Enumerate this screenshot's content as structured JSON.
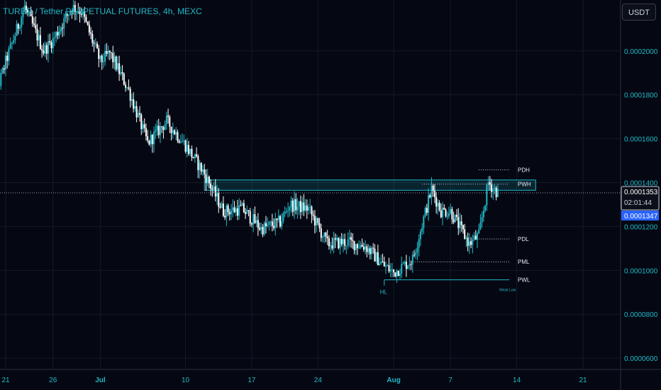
{
  "header": {
    "title": "TURBO / Tether PERPETUAL FUTURES, 4h, MEXC",
    "currency_button": "USDT"
  },
  "chart_data": {
    "type": "candlestick",
    "title": "TURBO / Tether PERPETUAL FUTURES, 4h, MEXC",
    "ylim": [
      4.55e-05,
      0.0002232
    ],
    "y_ticks": [
      "0.0002000",
      "0.0001800",
      "0.0001600",
      "0.0001400",
      "0.0001200",
      "0.0001000",
      "0.0000800",
      "0.0000600"
    ],
    "x_ticks": [
      "21",
      "26",
      "Jul",
      "10",
      "17",
      "24",
      "Aug",
      "7",
      "14",
      "21"
    ],
    "price_labels": {
      "last_price": "0.0001353",
      "countdown": "02:01:44",
      "mark_price": "0.0001347"
    },
    "price_path": [
      {
        "date": "2023-06-19",
        "price": 0.000166
      },
      {
        "date": "2023-06-21",
        "price": 0.000195
      },
      {
        "date": "2023-06-23",
        "price": 0.00022
      },
      {
        "date": "2023-06-25",
        "price": 0.0002
      },
      {
        "date": "2023-06-26",
        "price": 0.000205
      },
      {
        "date": "2023-06-28",
        "price": 0.00022
      },
      {
        "date": "2023-06-29",
        "price": 0.000218
      },
      {
        "date": "2023-07-01",
        "price": 0.000195
      },
      {
        "date": "2023-07-02",
        "price": 0.000199
      },
      {
        "date": "2023-07-04",
        "price": 0.000182
      },
      {
        "date": "2023-07-06",
        "price": 0.000158
      },
      {
        "date": "2023-07-08",
        "price": 0.000168
      },
      {
        "date": "2023-07-10",
        "price": 0.000157
      },
      {
        "date": "2023-07-12",
        "price": 0.000144
      },
      {
        "date": "2023-07-14",
        "price": 0.000127
      },
      {
        "date": "2023-07-16",
        "price": 0.000128
      },
      {
        "date": "2023-07-18",
        "price": 0.000119
      },
      {
        "date": "2023-07-20",
        "price": 0.000122
      },
      {
        "date": "2023-07-21",
        "price": 0.00013
      },
      {
        "date": "2023-07-23",
        "price": 0.000128
      },
      {
        "date": "2023-07-25",
        "price": 0.000112
      },
      {
        "date": "2023-07-27",
        "price": 0.000113
      },
      {
        "date": "2023-07-29",
        "price": 0.000111
      },
      {
        "date": "2023-07-31",
        "price": 0.000102
      },
      {
        "date": "2023-08-01",
        "price": 9.9e-05
      },
      {
        "date": "2023-08-03",
        "price": 0.000105
      },
      {
        "date": "2023-08-05",
        "price": 0.000137
      },
      {
        "date": "2023-08-06",
        "price": 0.000127
      },
      {
        "date": "2023-08-07",
        "price": 0.000127
      },
      {
        "date": "2023-08-09",
        "price": 0.000112
      },
      {
        "date": "2023-08-10",
        "price": 0.000116
      },
      {
        "date": "2023-08-11",
        "price": 0.00014
      },
      {
        "date": "2023-08-12",
        "price": 0.0001353
      }
    ],
    "levels": [
      {
        "label": "PDH",
        "value": 0.0001458
      },
      {
        "label": "PWH",
        "value": 0.0001393
      },
      {
        "label": "PDL",
        "value": 0.0001143
      },
      {
        "label": "PML",
        "value": 0.0001039
      },
      {
        "label": "PWL",
        "value": 9.57e-05
      }
    ],
    "zone": {
      "low": 0.0001365,
      "high": 0.0001412
    },
    "annotations": {
      "hl": "HL",
      "weak_low": "Weak Low"
    },
    "colors": {
      "background": "#050812",
      "grid": "#131a27",
      "accent": "#22b8c9",
      "candle_up": "#22b8c9",
      "candle_down": "#ffffff",
      "axis_text": "#22b8c9",
      "mark_label": "#2962ff"
    }
  }
}
